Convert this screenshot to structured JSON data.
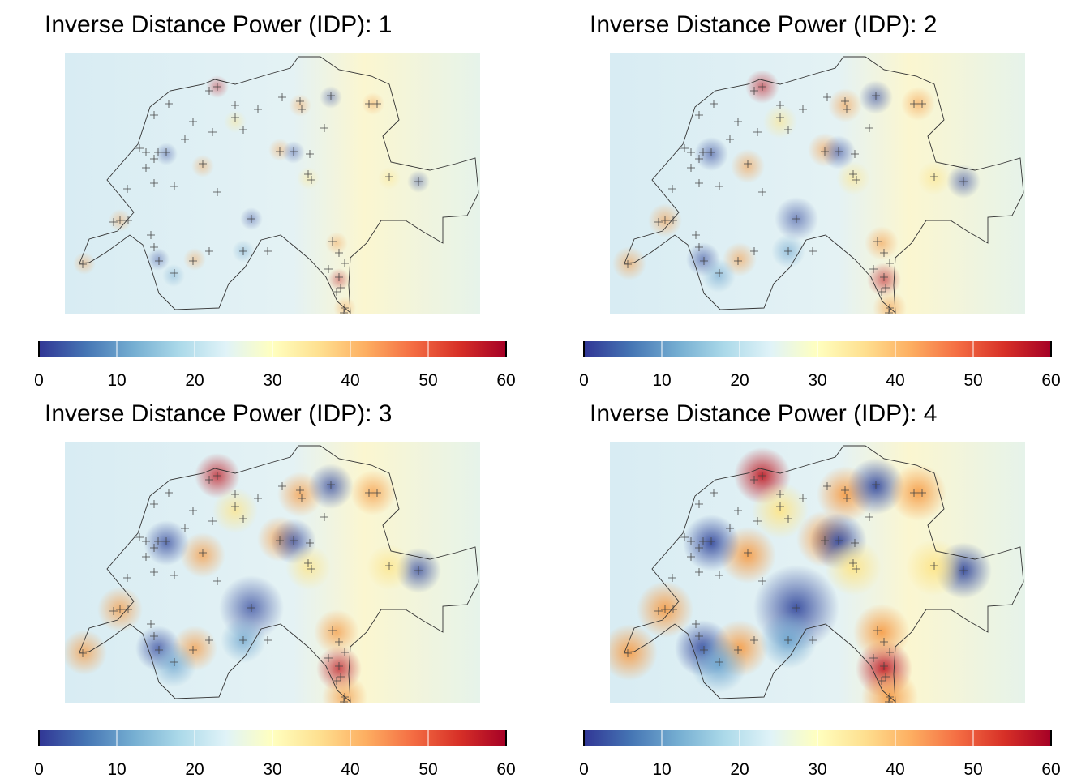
{
  "panels": [
    {
      "title": "Inverse Distance Power (IDP): 1",
      "colorbar": {
        "lim": [
          0,
          60
        ],
        "ticks": [
          0,
          10,
          20,
          30,
          40,
          50,
          60
        ]
      }
    },
    {
      "title": "Inverse Distance Power (IDP): 2",
      "colorbar": {
        "lim": [
          0,
          60
        ],
        "ticks": [
          0,
          10,
          20,
          30,
          40,
          50,
          60
        ]
      }
    },
    {
      "title": "Inverse Distance Power (IDP): 3",
      "colorbar": {
        "lim": [
          0,
          60
        ],
        "ticks": [
          0,
          10,
          20,
          30,
          40,
          50,
          60
        ]
      }
    },
    {
      "title": "Inverse Distance Power (IDP): 4",
      "colorbar": {
        "lim": [
          0,
          60
        ],
        "ticks": [
          0,
          10,
          20,
          30,
          40,
          50,
          60
        ]
      }
    }
  ],
  "colors": [
    "#313695",
    "#4575b4",
    "#74add1",
    "#abd9e9",
    "#e0f3f8",
    "#ffffbf",
    "#fee090",
    "#fdae61",
    "#f46d43",
    "#d73027",
    "#a50026"
  ]
}
